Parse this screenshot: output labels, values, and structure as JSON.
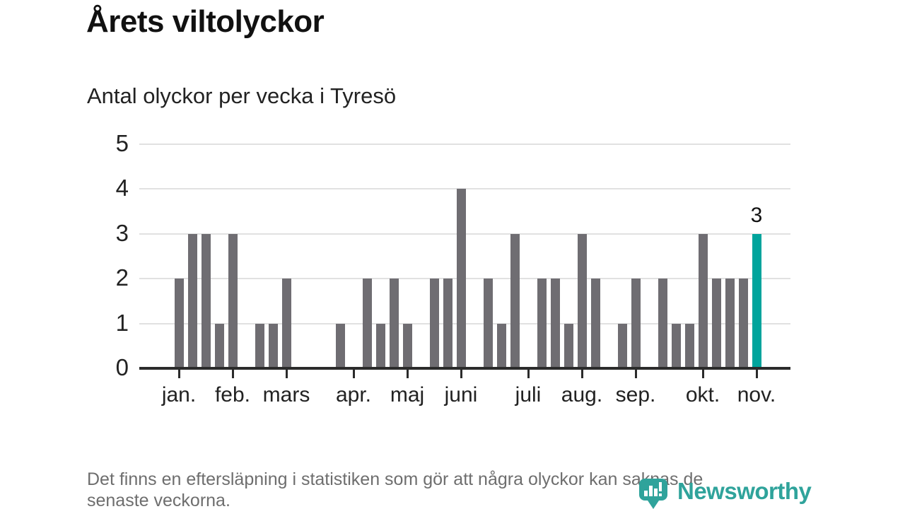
{
  "title": "Årets viltolyckor",
  "subtitle": "Antal olyckor per vecka i Tyresö",
  "footnote": {
    "full_text": "Det finns en eftersläpning i statistiken som gör att några olyckor kan saknas de senaste veckorna.",
    "lines": [
      "Det finns en eftersläpning i statistiken som gör att några olyckor kan saknas de",
      "senaste veckorna."
    ]
  },
  "branding": {
    "logo_text": "Newsworthy",
    "logo_icon": "newsworthy-pin-barchart-icon"
  },
  "colors": {
    "bar": "#6f6d72",
    "highlight": "#00a49c",
    "gridline": "#e1e1e1",
    "axis": "#2b2b2b",
    "logo_teal": "#2fa39b"
  },
  "chart_data": {
    "type": "bar",
    "title": "Årets viltolyckor",
    "subtitle": "Antal olyckor per vecka i Tyresö",
    "x_unit": "vecka (januari–november)",
    "ylabel": "Antal olyckor",
    "ylim": [
      0,
      5
    ],
    "y_ticks": [
      0,
      1,
      2,
      3,
      4,
      5
    ],
    "grid": true,
    "legend": false,
    "values": [
      2,
      3,
      3,
      1,
      3,
      0,
      1,
      1,
      2,
      0,
      0,
      0,
      1,
      0,
      2,
      1,
      2,
      1,
      0,
      2,
      2,
      4,
      0,
      2,
      1,
      3,
      0,
      2,
      2,
      1,
      3,
      2,
      0,
      1,
      2,
      0,
      2,
      1,
      1,
      3,
      2,
      2,
      2,
      3
    ],
    "highlight_index": 43,
    "highlight_label": "3",
    "month_ticks": [
      {
        "index": 0,
        "label": "jan."
      },
      {
        "index": 4,
        "label": "feb."
      },
      {
        "index": 8,
        "label": "mars"
      },
      {
        "index": 13,
        "label": "apr."
      },
      {
        "index": 17,
        "label": "maj"
      },
      {
        "index": 21,
        "label": "juni"
      },
      {
        "index": 26,
        "label": "juli"
      },
      {
        "index": 30,
        "label": "aug."
      },
      {
        "index": 34,
        "label": "sep."
      },
      {
        "index": 39,
        "label": "okt."
      },
      {
        "index": 43,
        "label": "nov."
      }
    ]
  }
}
